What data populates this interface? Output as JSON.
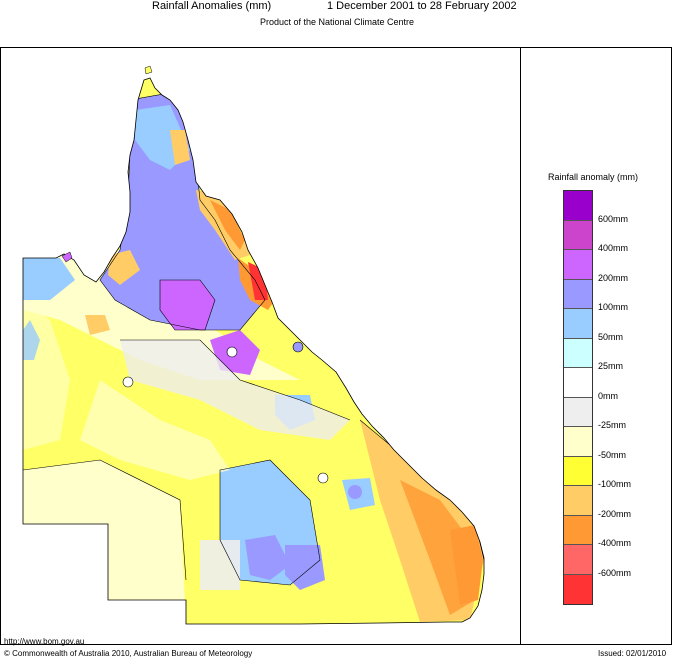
{
  "header": {
    "title": "Rainfall Anomalies (mm)",
    "period": "1 December 2001 to 28 February 2002",
    "subtitle": "Product of the National Climate Centre"
  },
  "legend": {
    "title": "Rainfall anomaly (mm)",
    "swatches": [
      {
        "color": "#9900cc"
      },
      {
        "color": "#cc44cc"
      },
      {
        "color": "#cc66ff"
      },
      {
        "color": "#9999ff"
      },
      {
        "color": "#99ccff"
      },
      {
        "color": "#ccffff"
      },
      {
        "color": "#ffffff"
      },
      {
        "color": "#eeeeee"
      },
      {
        "color": "#ffffcc"
      },
      {
        "color": "#ffff33"
      },
      {
        "color": "#ffcc66"
      },
      {
        "color": "#ff9933"
      },
      {
        "color": "#ff6666"
      },
      {
        "color": "#ff3333"
      }
    ],
    "labels": [
      "600mm",
      "400mm",
      "200mm",
      "100mm",
      "50mm",
      "25mm",
      "0mm",
      "-25mm",
      "-50mm",
      "-100mm",
      "-200mm",
      "-400mm",
      "-600mm"
    ]
  },
  "footer": {
    "url": "http://www.bom.gov.au",
    "copyright": "© Commonwealth of Australia 2010, Australian Bureau of Meteorology",
    "issued": "Issued: 02/01/2010"
  }
}
